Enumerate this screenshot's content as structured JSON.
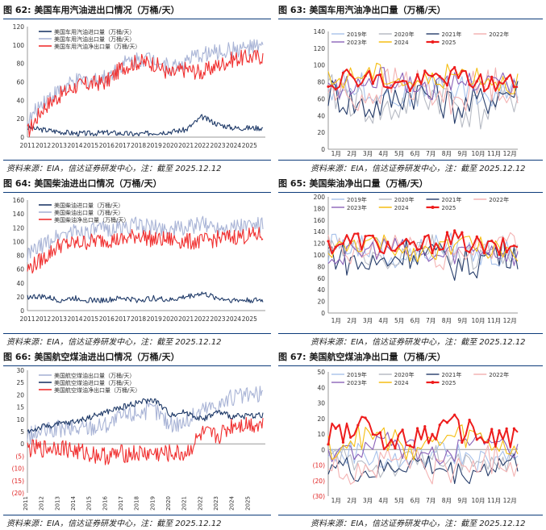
{
  "colors": {
    "import": "#1f3a68",
    "export": "#a9b4d6",
    "net": "#f03030",
    "y2019": "#a7c1ea",
    "y2020": "#b7bbc4",
    "y2021": "#253c6a",
    "y2022": "#f4b3b3",
    "y2023": "#8b63b8",
    "y2024": "#f5be13",
    "y2025": "#ee1c1c"
  },
  "panels": [
    {
      "id": "62",
      "num": "图 62:",
      "title": "美国车用汽油进出口情况（万桶/天）",
      "source": "资料来源：EIA，信达证券研发中心，注：截至 2025.12.12",
      "chart_data": {
        "type": "line",
        "title": "美国车用汽油进出口情况（万桶/天）",
        "xticks": [
          "2011",
          "2012",
          "2013",
          "2014",
          "2015",
          "2016",
          "2017",
          "2018",
          "2019",
          "2020",
          "2021",
          "2022",
          "2023",
          "2024",
          "2025"
        ],
        "x_range": [
          2011,
          2026
        ],
        "ylim": [
          0,
          120
        ],
        "yticks": [
          0,
          20,
          40,
          60,
          80,
          100,
          120
        ],
        "legend_position": "top-left",
        "series": [
          {
            "name": "美国车用汽油进口量（万桶/天）",
            "color_key": "import",
            "anchors": [
              [
                2011,
                10
              ],
              [
                2012,
                8
              ],
              [
                2013,
                6
              ],
              [
                2014,
                4
              ],
              [
                2015,
                4
              ],
              [
                2016,
                5
              ],
              [
                2017,
                4
              ],
              [
                2018,
                3
              ],
              [
                2019,
                5
              ],
              [
                2020,
                6
              ],
              [
                2021,
                8
              ],
              [
                2022,
                22
              ],
              [
                2023,
                14
              ],
              [
                2024,
                10
              ],
              [
                2025.9,
                10
              ]
            ]
          },
          {
            "name": "美国车用汽油出口量（万桶/天）",
            "color_key": "export",
            "anchors": [
              [
                2011,
                15
              ],
              [
                2012,
                40
              ],
              [
                2013,
                50
              ],
              [
                2014,
                60
              ],
              [
                2015,
                62
              ],
              [
                2016,
                65
              ],
              [
                2017,
                80
              ],
              [
                2018,
                85
              ],
              [
                2019,
                86
              ],
              [
                2020,
                75
              ],
              [
                2021,
                82
              ],
              [
                2022,
                90
              ],
              [
                2023,
                92
              ],
              [
                2024,
                95
              ],
              [
                2025.9,
                98
              ]
            ]
          },
          {
            "name": "美国车用汽油净出口量（万桶/天）",
            "color_key": "net",
            "anchors": [
              [
                2011,
                5
              ],
              [
                2012,
                32
              ],
              [
                2013,
                45
              ],
              [
                2014,
                55
              ],
              [
                2015,
                58
              ],
              [
                2016,
                60
              ],
              [
                2017,
                76
              ],
              [
                2018,
                82
              ],
              [
                2019,
                80
              ],
              [
                2020,
                68
              ],
              [
                2021,
                74
              ],
              [
                2022,
                70
              ],
              [
                2023,
                78
              ],
              [
                2024,
                85
              ],
              [
                2025.9,
                88
              ]
            ]
          }
        ]
      }
    },
    {
      "id": "63",
      "num": "图 63:",
      "title": "美国车用汽油净出口量（万桶/天）",
      "source": "资料来源：EIA，信达证券研发中心，注：截至 2025.12.12",
      "chart_data": {
        "type": "line",
        "title": "美国车用汽油净出口量（万桶/天）",
        "xticks": [
          "1月",
          "2月",
          "3月",
          "4月",
          "5月",
          "6月",
          "7月",
          "8月",
          "9月",
          "10月",
          "11月",
          "12月"
        ],
        "ylim": [
          0,
          140
        ],
        "yticks": [
          0,
          20,
          40,
          60,
          80,
          100,
          120,
          140
        ],
        "legend_position": "top",
        "series": [
          {
            "name": "2019年",
            "color_key": "y2019",
            "base": 70,
            "amp": 18
          },
          {
            "name": "2020年",
            "color_key": "y2020",
            "base": 55,
            "amp": 25
          },
          {
            "name": "2021年",
            "color_key": "y2021",
            "base": 60,
            "amp": 22
          },
          {
            "name": "2022年",
            "color_key": "y2022",
            "base": 70,
            "amp": 22
          },
          {
            "name": "2023年",
            "color_key": "y2023",
            "base": 78,
            "amp": 14
          },
          {
            "name": "2024",
            "color_key": "y2024",
            "base": 85,
            "amp": 14
          },
          {
            "name": "2025",
            "color_key": "y2025",
            "base": 82,
            "amp": 12
          }
        ]
      }
    },
    {
      "id": "64",
      "num": "图 64:",
      "title": "美国柴油进出口情况（万桶/天）",
      "source": "资料来源：EIA，信达证券研发中心，注：截至 2025.12.12",
      "chart_data": {
        "type": "line",
        "title": "美国柴油进出口情况（万桶/天）",
        "xticks": [
          "2011",
          "2012",
          "2013",
          "2014",
          "2015",
          "2016",
          "2017",
          "2018",
          "2019",
          "2020",
          "2021",
          "2022",
          "2023",
          "2024",
          "2025"
        ],
        "x_range": [
          2011,
          2026
        ],
        "ylim": [
          0,
          160
        ],
        "yticks": [
          0,
          20,
          40,
          60,
          80,
          100,
          120,
          140,
          160
        ],
        "legend_position": "top-left",
        "series": [
          {
            "name": "美国柴油进口量（万桶/天）",
            "color_key": "import",
            "anchors": [
              [
                2011,
                20
              ],
              [
                2012,
                20
              ],
              [
                2013,
                15
              ],
              [
                2014,
                18
              ],
              [
                2015,
                15
              ],
              [
                2016,
                15
              ],
              [
                2017,
                18
              ],
              [
                2018,
                15
              ],
              [
                2019,
                18
              ],
              [
                2020,
                15
              ],
              [
                2021,
                20
              ],
              [
                2022,
                25
              ],
              [
                2023,
                18
              ],
              [
                2024,
                15
              ],
              [
                2025.9,
                15
              ]
            ]
          },
          {
            "name": "美国柴油出口量（万桶/天）",
            "color_key": "export",
            "anchors": [
              [
                2011,
                80
              ],
              [
                2012,
                95
              ],
              [
                2013,
                110
              ],
              [
                2014,
                115
              ],
              [
                2015,
                115
              ],
              [
                2016,
                118
              ],
              [
                2017,
                120
              ],
              [
                2018,
                125
              ],
              [
                2019,
                120
              ],
              [
                2020,
                118
              ],
              [
                2021,
                120
              ],
              [
                2022,
                125
              ],
              [
                2023,
                122
              ],
              [
                2024,
                122
              ],
              [
                2025.9,
                125
              ]
            ]
          },
          {
            "name": "美国柴油净出口量（万桶/天）",
            "color_key": "net",
            "anchors": [
              [
                2011,
                60
              ],
              [
                2012,
                75
              ],
              [
                2013,
                95
              ],
              [
                2014,
                97
              ],
              [
                2015,
                100
              ],
              [
                2016,
                103
              ],
              [
                2017,
                102
              ],
              [
                2018,
                110
              ],
              [
                2019,
                102
              ],
              [
                2020,
                103
              ],
              [
                2021,
                100
              ],
              [
                2022,
                100
              ],
              [
                2023,
                104
              ],
              [
                2024,
                107
              ],
              [
                2025.9,
                110
              ]
            ]
          }
        ]
      }
    },
    {
      "id": "65",
      "num": "图 65:",
      "title": "美国柴油净出口量（万桶/天）",
      "source": "资料来源：EIA，信达证券研发中心，注：截至 2025.12.12",
      "chart_data": {
        "type": "line",
        "title": "美国柴油净出口量（万桶/天）",
        "xticks": [
          "1月",
          "2月",
          "3月",
          "4月",
          "5月",
          "6月",
          "7月",
          "8月",
          "9月",
          "10月",
          "11月",
          "12月"
        ],
        "ylim": [
          0,
          200
        ],
        "yticks": [
          0,
          20,
          40,
          60,
          80,
          100,
          120,
          140,
          160,
          180,
          200
        ],
        "legend_position": "top",
        "series": [
          {
            "name": "2019年",
            "color_key": "y2019",
            "base": 110,
            "amp": 25
          },
          {
            "name": "2020年",
            "color_key": "y2020",
            "base": 100,
            "amp": 25
          },
          {
            "name": "2021年",
            "color_key": "y2021",
            "base": 95,
            "amp": 30
          },
          {
            "name": "2022年",
            "color_key": "y2022",
            "base": 110,
            "amp": 30
          },
          {
            "name": "2023年",
            "color_key": "y2023",
            "base": 105,
            "amp": 20
          },
          {
            "name": "2024",
            "color_key": "y2024",
            "base": 112,
            "amp": 18
          },
          {
            "name": "2025",
            "color_key": "y2025",
            "base": 118,
            "amp": 18
          }
        ]
      }
    },
    {
      "id": "66",
      "num": "图 66:",
      "title": "美国航空煤油进出口情况（万桶/天）",
      "source": "资料来源：EIA，信达证券研发中心，注：截至 2025.12.12",
      "chart_data": {
        "type": "line",
        "title": "美国航空煤油进出口情况（万桶/天）",
        "xticks": [
          "2011",
          "2012",
          "2013",
          "2014",
          "2015",
          "2016",
          "2017",
          "2018",
          "2019",
          "2020",
          "2021",
          "2022",
          "2023",
          "2024",
          "2025"
        ],
        "x_range": [
          2011,
          2026
        ],
        "ylim": [
          -20,
          30
        ],
        "yticks": [
          -20,
          -15,
          -10,
          -5,
          0,
          5,
          10,
          15,
          20,
          25,
          30
        ],
        "ytick_labels": [
          "(20)",
          "(15)",
          "(10)",
          "(5)",
          "0",
          "5",
          "10",
          "15",
          "20",
          "25",
          "30"
        ],
        "legend_position": "top-left",
        "series": [
          {
            "name": "美国航空煤油出口量（万桶/天）",
            "color_key": "export",
            "anchors": [
              [
                2011,
                3
              ],
              [
                2012,
                5
              ],
              [
                2013,
                6
              ],
              [
                2014,
                6
              ],
              [
                2015,
                7
              ],
              [
                2016,
                8
              ],
              [
                2017,
                11
              ],
              [
                2018,
                13
              ],
              [
                2019,
                14
              ],
              [
                2020,
                8
              ],
              [
                2021,
                9
              ],
              [
                2022,
                14
              ],
              [
                2023,
                16
              ],
              [
                2024,
                19
              ],
              [
                2025.9,
                20
              ]
            ]
          },
          {
            "name": "美国航空煤油进口量（万桶/天）",
            "color_key": "import",
            "anchors": [
              [
                2011,
                5
              ],
              [
                2012,
                7
              ],
              [
                2013,
                8
              ],
              [
                2014,
                9
              ],
              [
                2015,
                11
              ],
              [
                2016,
                13
              ],
              [
                2017,
                15
              ],
              [
                2018,
                17
              ],
              [
                2019,
                18
              ],
              [
                2020,
                12
              ],
              [
                2021,
                13
              ],
              [
                2022,
                10
              ],
              [
                2023,
                13
              ],
              [
                2024,
                11
              ],
              [
                2025.9,
                12
              ]
            ]
          },
          {
            "name": "美国航空煤油净出口量（万桶/天）",
            "color_key": "net",
            "anchors": [
              [
                2011,
                -2
              ],
              [
                2012,
                -2
              ],
              [
                2013,
                -1
              ],
              [
                2014,
                -3
              ],
              [
                2015,
                -4
              ],
              [
                2016,
                -5
              ],
              [
                2017,
                -4
              ],
              [
                2018,
                -4
              ],
              [
                2019,
                -4
              ],
              [
                2020,
                -4
              ],
              [
                2021,
                -4
              ],
              [
                2022,
                4
              ],
              [
                2023,
                3
              ],
              [
                2024,
                8
              ],
              [
                2025.9,
                8
              ]
            ]
          }
        ]
      }
    },
    {
      "id": "67",
      "num": "图 67:",
      "title": "美国航空煤油净出口量（万桶/天）",
      "source": "资料来源：EIA，信达证券研发中心，注：截至 2025.12.12",
      "chart_data": {
        "type": "line",
        "title": "美国航空煤油净出口量（万桶/天）",
        "xticks": [
          "1月",
          "2月",
          "3月",
          "4月",
          "5月",
          "6月",
          "7月",
          "8月",
          "9月",
          "10月",
          "11月",
          "12月"
        ],
        "ylim": [
          -30,
          50
        ],
        "yticks": [
          -30,
          -20,
          -10,
          0,
          10,
          20,
          30,
          40,
          50
        ],
        "ytick_labels": [
          "(30)",
          "(20)",
          "(10)",
          "0",
          "10",
          "20",
          "30",
          "40",
          "50"
        ],
        "legend_position": "top",
        "series": [
          {
            "name": "2019年",
            "color_key": "y2019",
            "base": -5,
            "amp": 8
          },
          {
            "name": "2020年",
            "color_key": "y2020",
            "base": -8,
            "amp": 8
          },
          {
            "name": "2021年",
            "color_key": "y2021",
            "base": -12,
            "amp": 8
          },
          {
            "name": "2022年",
            "color_key": "y2022",
            "base": -10,
            "amp": 10
          },
          {
            "name": "2023年",
            "color_key": "y2023",
            "base": 0,
            "amp": 8
          },
          {
            "name": "2024",
            "color_key": "y2024",
            "base": 5,
            "amp": 9
          },
          {
            "name": "2025",
            "color_key": "y2025",
            "base": 10,
            "amp": 9
          }
        ]
      }
    }
  ]
}
